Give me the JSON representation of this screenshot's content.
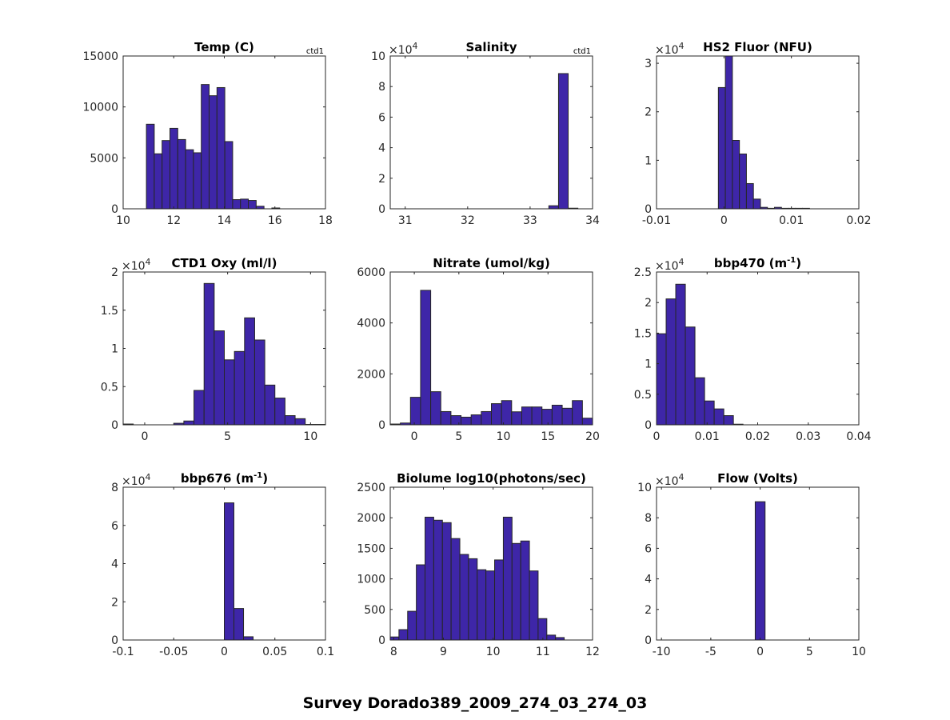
{
  "figure": {
    "suptitle": "Survey Dorado389_2009_274_03_274_03",
    "bar_color": "#3e26a8",
    "edge_color": "#262626",
    "axis_color": "#262626"
  },
  "chart_data": [
    {
      "type": "bar",
      "title": "Temp (C)",
      "note": "ctd1",
      "exponent": "",
      "xlim": [
        10,
        18
      ],
      "ylim": [
        0,
        15000
      ],
      "xticks": [
        10,
        12,
        14,
        16,
        18
      ],
      "xtick_labels": [
        "10",
        "12",
        "14",
        "16",
        "18"
      ],
      "yticks": [
        0,
        5000,
        10000,
        15000
      ],
      "ytick_labels": [
        "0",
        "5000",
        "10000",
        "15000"
      ],
      "bin_start": 10.92,
      "bin_width": 0.31,
      "values": [
        8300,
        5400,
        6700,
        7900,
        6800,
        5800,
        5500,
        12200,
        11100,
        11900,
        6600,
        900,
        950,
        820,
        250,
        0,
        80
      ]
    },
    {
      "type": "bar",
      "title": "Salinity",
      "note": "ctd1",
      "exponent": "4",
      "xlim": [
        30.76,
        34
      ],
      "ylim": [
        0,
        10
      ],
      "xticks": [
        31,
        32,
        33,
        34
      ],
      "xtick_labels": [
        "31",
        "32",
        "33",
        "34"
      ],
      "yticks": [
        0,
        2,
        4,
        6,
        8,
        10
      ],
      "ytick_labels": [
        "0",
        "2",
        "4",
        "6",
        "8",
        "10"
      ],
      "bin_start": 33.3,
      "bin_width": 0.155,
      "values": [
        0.2,
        8.85,
        0.04
      ]
    },
    {
      "type": "bar",
      "title": "HS2 Fluor (NFU)",
      "note": "",
      "exponent": "4",
      "xlim": [
        -0.01,
        0.02
      ],
      "ylim": [
        0,
        3.15
      ],
      "xticks": [
        -0.01,
        0,
        0.01,
        0.02
      ],
      "xtick_labels": [
        "-0.01",
        "0",
        "0.01",
        "0.02"
      ],
      "yticks": [
        0,
        1,
        2,
        3
      ],
      "ytick_labels": [
        "0",
        "1",
        "2",
        "3"
      ],
      "bin_start": -0.00083,
      "bin_width": 0.00104,
      "values": [
        2.5,
        3.2,
        1.41,
        1.13,
        0.52,
        0.2,
        0.03,
        0.01,
        0.03,
        0.01,
        0.01,
        0.01,
        0.01
      ]
    },
    {
      "type": "bar",
      "title": "CTD1 Oxy (ml/l)",
      "note": "",
      "exponent": "4",
      "xlim": [
        -1.3,
        10.9
      ],
      "ylim": [
        0,
        2
      ],
      "xticks": [
        0,
        5,
        10
      ],
      "xtick_labels": [
        "0",
        "5",
        "10"
      ],
      "yticks": [
        0,
        0.5,
        1,
        1.5,
        2
      ],
      "ytick_labels": [
        "0",
        "0.5",
        "1",
        "1.5",
        "2"
      ],
      "bin_start": -1.3,
      "bin_width": 0.61,
      "values": [
        0.01,
        0,
        0,
        0,
        0,
        0.02,
        0.05,
        0.45,
        1.85,
        1.23,
        0.85,
        0.96,
        1.4,
        1.11,
        0.52,
        0.35,
        0.12,
        0.08,
        0.005,
        0.005
      ]
    },
    {
      "type": "bar",
      "title": "Nitrate (umol/kg)",
      "note": "",
      "exponent": "",
      "xlim": [
        -2.7,
        20
      ],
      "ylim": [
        0,
        6000
      ],
      "xticks": [
        0,
        5,
        10,
        15,
        20
      ],
      "xtick_labels": [
        "0",
        "5",
        "10",
        "15",
        "20"
      ],
      "yticks": [
        0,
        2000,
        4000,
        6000
      ],
      "ytick_labels": [
        "0",
        "2000",
        "4000",
        "6000"
      ],
      "bin_start": -2.7,
      "bin_width": 1.135,
      "values": [
        30,
        70,
        1080,
        5280,
        1300,
        520,
        360,
        300,
        390,
        520,
        830,
        950,
        510,
        700,
        700,
        610,
        770,
        650,
        950,
        260
      ]
    },
    {
      "type": "bar",
      "title": "bbp470 (m",
      "title_sup": "-1",
      "title_end": ")",
      "note": "",
      "exponent": "4",
      "xlim": [
        0,
        0.04
      ],
      "ylim": [
        0,
        2.5
      ],
      "xticks": [
        0,
        0.01,
        0.02,
        0.03,
        0.04
      ],
      "xtick_labels": [
        "0",
        "0.01",
        "0.02",
        "0.03",
        "0.04"
      ],
      "yticks": [
        0,
        0.5,
        1,
        1.5,
        2,
        2.5
      ],
      "ytick_labels": [
        "0",
        "0.5",
        "1",
        "1.5",
        "2",
        "2.5"
      ],
      "bin_start": 0,
      "bin_width": 0.0019,
      "values": [
        1.49,
        2.06,
        2.3,
        1.6,
        0.77,
        0.39,
        0.26,
        0.15,
        0.01
      ]
    },
    {
      "type": "bar",
      "title": "bbp676 (m",
      "title_sup": "-1",
      "title_end": ")",
      "note": "",
      "exponent": "4",
      "xlim": [
        -0.1,
        0.1
      ],
      "ylim": [
        0,
        8
      ],
      "xticks": [
        -0.1,
        -0.05,
        0,
        0.05,
        0.1
      ],
      "xtick_labels": [
        "-0.1",
        "-0.05",
        "0",
        "0.05",
        "0.1"
      ],
      "yticks": [
        0,
        2,
        4,
        6,
        8
      ],
      "ytick_labels": [
        "0",
        "2",
        "4",
        "6",
        "8"
      ],
      "bin_start": 0,
      "bin_width": 0.0095,
      "values": [
        7.18,
        1.65,
        0.17
      ]
    },
    {
      "type": "bar",
      "title": "Biolume log10(photons/sec)",
      "note": "",
      "exponent": "",
      "xlim": [
        7.93,
        12
      ],
      "ylim": [
        0,
        2500
      ],
      "xticks": [
        8,
        9,
        10,
        11,
        12
      ],
      "xtick_labels": [
        "8",
        "9",
        "10",
        "11",
        "12"
      ],
      "yticks": [
        0,
        500,
        1000,
        1500,
        2000,
        2500
      ],
      "ytick_labels": [
        "0",
        "500",
        "1000",
        "1500",
        "2000",
        "2500"
      ],
      "bin_start": 7.93,
      "bin_width": 0.175,
      "values": [
        50,
        170,
        470,
        1230,
        2010,
        1960,
        1920,
        1660,
        1400,
        1330,
        1150,
        1130,
        1310,
        2010,
        1580,
        1620,
        1130,
        350,
        80,
        40
      ]
    },
    {
      "type": "bar",
      "title": "Flow (Volts)",
      "note": "",
      "exponent": "4",
      "xlim": [
        -10.5,
        10
      ],
      "ylim": [
        0,
        10
      ],
      "xticks": [
        -10,
        -5,
        0,
        5,
        10
      ],
      "xtick_labels": [
        "-10",
        "-5",
        "0",
        "5",
        "10"
      ],
      "yticks": [
        0,
        2,
        4,
        6,
        8,
        10
      ],
      "ytick_labels": [
        "0",
        "2",
        "4",
        "6",
        "8",
        "10"
      ],
      "bin_start": -0.5,
      "bin_width": 1.0,
      "values": [
        9.05
      ]
    }
  ]
}
